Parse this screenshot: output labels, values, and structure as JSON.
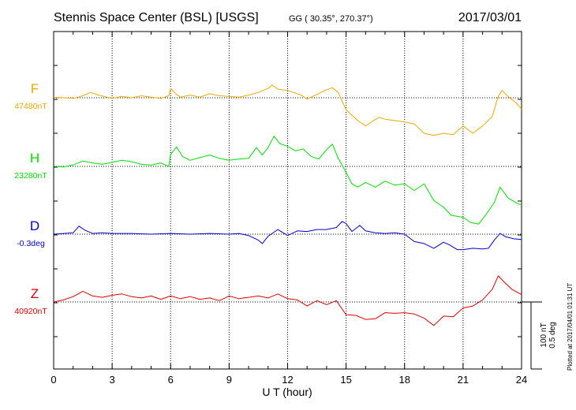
{
  "chart_data": {
    "type": "line",
    "title": "Stennis Space Center (BSL)  [USGS]",
    "coords": "GG ( 30.35°, 270.37°)",
    "date": "2017/03/01",
    "xlabel": "U T (hour)",
    "xlim": [
      0,
      24
    ],
    "xticks": [
      "0",
      "3",
      "6",
      "9",
      "12",
      "15",
      "18",
      "21",
      "24"
    ],
    "scale_label_1": "100 nT",
    "scale_label_2": "0.5 deg",
    "plotted_note": "Plotted at 2017/04/01 01:31  UT",
    "grid": true,
    "series": [
      {
        "name": "F",
        "baseline_label": "47480nT",
        "color": "#f0a800",
        "x": [
          0,
          1,
          1.5,
          1.9,
          2.3,
          3,
          3.5,
          4,
          4.5,
          5,
          5.5,
          5.9,
          6,
          6.3,
          6.5,
          7,
          7.5,
          8,
          8.5,
          9,
          9.5,
          10,
          10.5,
          11,
          11.2,
          11.5,
          12,
          12.3,
          12.7,
          13,
          13.5,
          14,
          14.3,
          14.6,
          15,
          15.3,
          15.6,
          16,
          16.4,
          16.7,
          17,
          17.5,
          18,
          18.5,
          19,
          19.5,
          20,
          20.5,
          21,
          21.5,
          22,
          22.5,
          22.8,
          23,
          23.3,
          23.7,
          24
        ],
        "values": [
          0.1,
          -0.1,
          0.3,
          0.8,
          0.4,
          -0.1,
          0.2,
          0,
          0.3,
          0.1,
          -0.1,
          0.3,
          1.4,
          0.5,
          0.1,
          0.4,
          0.1,
          0.6,
          0.3,
          0.2,
          0.1,
          0.4,
          0.8,
          1.4,
          1.9,
          1.3,
          1.1,
          0.8,
          0.4,
          -0.2,
          0.5,
          1.2,
          1.5,
          0.8,
          -1.8,
          -2.6,
          -3.4,
          -4.2,
          -3.4,
          -2.9,
          -3.2,
          -3.4,
          -3.6,
          -3.9,
          -5.3,
          -5.6,
          -5.3,
          -5.5,
          -4.2,
          -5.3,
          -4.2,
          -2.8,
          0.2,
          1.1,
          0.2,
          -0.7,
          -1.7
        ]
      },
      {
        "name": "H",
        "baseline_label": "23280nT",
        "color": "#00e000",
        "x": [
          0,
          0.5,
          1,
          1.5,
          2,
          2.5,
          3,
          3.5,
          4,
          4.5,
          5,
          5.5,
          5.9,
          6,
          6.3,
          6.6,
          7,
          7.5,
          8,
          8.5,
          9,
          9.5,
          10,
          10.4,
          10.7,
          11,
          11.3,
          11.6,
          12,
          12.4,
          12.8,
          13.2,
          13.6,
          14,
          14.3,
          14.6,
          15,
          15.3,
          15.6,
          16,
          16.5,
          17,
          17.5,
          18,
          18.5,
          19,
          19.5,
          20,
          20.4,
          21,
          21.4,
          21.8,
          22.2,
          22.6,
          22.9,
          23.3,
          23.7,
          24
        ],
        "values": [
          0,
          -0.1,
          0.2,
          0.8,
          0.5,
          0.3,
          0.6,
          0.9,
          0.7,
          0.3,
          0.2,
          0.5,
          0,
          1.8,
          2.9,
          1.5,
          0.9,
          1.3,
          1.7,
          1.2,
          0.9,
          1.1,
          1.2,
          2.8,
          1.7,
          2.8,
          4.5,
          3.4,
          3,
          2.3,
          2.6,
          1.5,
          1.1,
          2.5,
          3.3,
          1.2,
          -0.9,
          -2.6,
          -3.1,
          -2.4,
          -3.1,
          -2.2,
          -2.8,
          -2.6,
          -3.6,
          -2.6,
          -5.1,
          -6.1,
          -7.3,
          -7.6,
          -8.4,
          -8.6,
          -7.1,
          -5.4,
          -3.1,
          -4.7,
          -5.4,
          -5.8
        ]
      },
      {
        "name": "D",
        "baseline_label": "-0.3deg",
        "color": "#0000d0",
        "x": [
          0,
          0.5,
          1,
          1.3,
          1.6,
          2,
          2.5,
          3,
          4,
          5,
          6,
          7,
          8,
          9,
          9.5,
          10,
          10.5,
          10.7,
          11,
          11.5,
          12,
          12.5,
          13,
          13.5,
          14,
          14.5,
          14.8,
          15,
          15.3,
          15.7,
          16,
          16.5,
          17,
          17.5,
          18,
          18.5,
          19,
          19.5,
          20,
          20.3,
          20.7,
          21,
          21.5,
          22,
          22.3,
          22.6,
          22.9,
          23.2,
          23.6,
          24
        ],
        "values": [
          0,
          0.1,
          0.2,
          1.2,
          0.6,
          0.1,
          0.2,
          0.1,
          0.1,
          0,
          0.1,
          0,
          0.1,
          0,
          0.1,
          -0.2,
          -0.9,
          -1.4,
          -0.3,
          0.7,
          -0.2,
          0.5,
          0.4,
          0.7,
          0.7,
          1,
          1.9,
          1.6,
          0.4,
          1.3,
          0.5,
          0.2,
          0.1,
          0.2,
          0,
          -1.1,
          -1.4,
          -2.1,
          -1.2,
          -1.6,
          -2.3,
          -2.3,
          -2.1,
          -2.2,
          -2.1,
          -0.9,
          0.1,
          -0.4,
          -0.7,
          -0.8
        ]
      },
      {
        "name": "Z",
        "baseline_label": "40920nT",
        "color": "#e00000",
        "x": [
          0,
          0.5,
          1,
          1.5,
          2,
          2.5,
          3,
          3.5,
          4,
          4.5,
          5,
          5.5,
          6,
          6.5,
          7,
          7.5,
          8,
          8.5,
          9,
          9.5,
          10,
          10.5,
          11,
          11.5,
          12,
          12.5,
          13,
          13.5,
          14,
          14.5,
          15,
          15.5,
          16,
          16.5,
          17,
          17.5,
          18,
          18.5,
          19,
          19.5,
          20,
          20.5,
          21,
          21.5,
          22,
          22.5,
          22.8,
          23.1,
          23.5,
          24
        ],
        "values": [
          0,
          0.3,
          0.8,
          1.6,
          0.9,
          0.7,
          1,
          1.2,
          0.8,
          0.6,
          0.9,
          0.4,
          0.9,
          0.5,
          0.8,
          0.4,
          0.6,
          0.2,
          0.9,
          0.5,
          0.7,
          0.9,
          0.6,
          1.2,
          0.5,
          0.3,
          -0.6,
          0.2,
          -0.4,
          0.2,
          -1.9,
          -2,
          -2.6,
          -2.5,
          -1.6,
          -1.7,
          -1.6,
          -1.8,
          -2.4,
          -3.5,
          -2.1,
          -2.2,
          -0.9,
          -0.6,
          0.3,
          1.9,
          3.9,
          3,
          1.9,
          1.1
        ]
      }
    ]
  }
}
